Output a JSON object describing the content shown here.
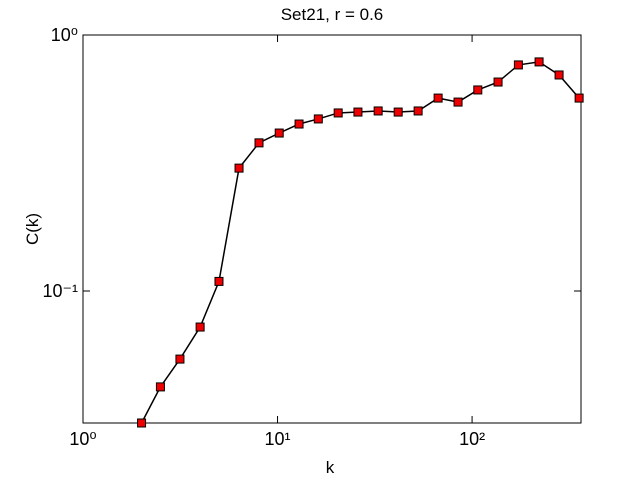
{
  "chart_data": {
    "type": "line",
    "title": "Set21, r = 0.6",
    "xlabel": "k",
    "ylabel": "C(k)",
    "x": [
      2,
      2.5,
      3.15,
      4,
      5,
      6.34,
      8.03,
      10.2,
      12.9,
      16.2,
      20.5,
      25.9,
      32.9,
      41.7,
      52.8,
      66.9,
      84.7,
      107,
      136,
      173,
      221,
      280,
      355
    ],
    "series": [
      {
        "name": "C(k)",
        "color": "#ee0000",
        "values": [
          0.0305,
          0.0422,
          0.0542,
          0.0723,
          0.109,
          0.302,
          0.379,
          0.414,
          0.449,
          0.47,
          0.496,
          0.5,
          0.505,
          0.5,
          0.505,
          0.567,
          0.547,
          0.61,
          0.655,
          0.764,
          0.785,
          0.698,
          0.567
        ]
      }
    ],
    "xscale": "log",
    "yscale": "log",
    "xlim": [
      1,
      363
    ],
    "ylim": [
      0.0305,
      1
    ],
    "xticks": [
      {
        "value": 1,
        "label": "10⁰"
      },
      {
        "value": 10,
        "label": "10¹"
      },
      {
        "value": 100,
        "label": "10²"
      }
    ],
    "yticks": [
      {
        "value": 0.1,
        "label": "10⁻¹"
      },
      {
        "value": 1,
        "label": "10⁰"
      }
    ],
    "grid": false
  }
}
